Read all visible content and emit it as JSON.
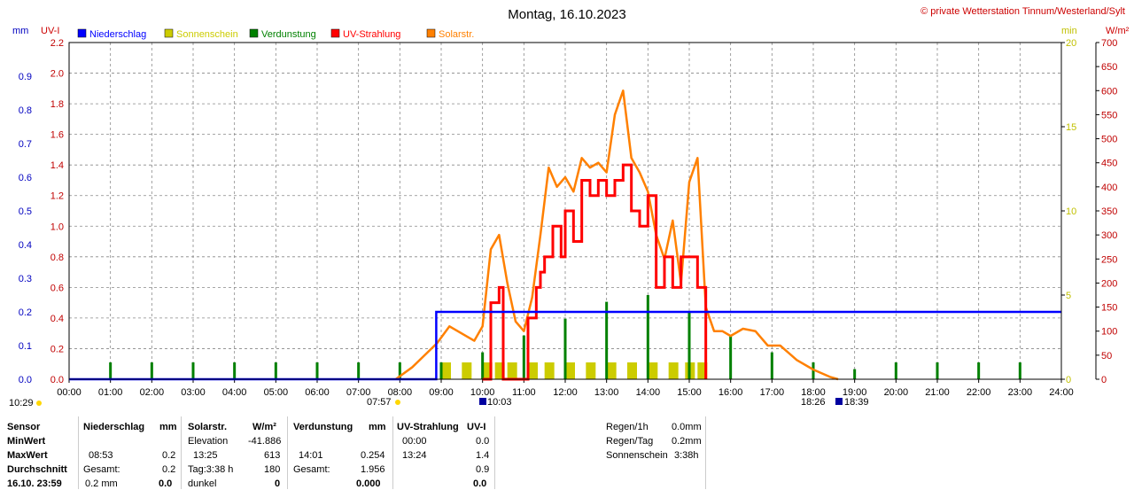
{
  "title": "Montag, 16.10.2023",
  "copyright": "© private Wetterstation Tinnum/Westerland/Sylt",
  "axis_units": {
    "mm": "mm",
    "uvi": "UV-I",
    "min": "min",
    "wm2": "W/m²"
  },
  "legend": [
    {
      "label": "Niederschlag",
      "color": "#0000ff"
    },
    {
      "label": "Sonnenschein",
      "color": "#cccc00"
    },
    {
      "label": "Verdunstung",
      "color": "#008000"
    },
    {
      "label": "UV-Strahlung",
      "color": "#ff0000"
    },
    {
      "label": "Solarstr.",
      "color": "#ff8000"
    }
  ],
  "markers": {
    "sunrise_label": "10:29",
    "sun_1": "07:57",
    "sun_2": "10:03",
    "sun_3": "18:26",
    "sun_4": "18:39"
  },
  "chart_data": {
    "type": "line",
    "title": "Montag, 16.10.2023",
    "x_range": [
      0,
      24
    ],
    "x_ticks": [
      "00:00",
      "01:00",
      "02:00",
      "03:00",
      "04:00",
      "05:00",
      "06:00",
      "07:00",
      "08:00",
      "09:00",
      "10:00",
      "11:00",
      "12:00",
      "13:00",
      "14:00",
      "15:00",
      "16:00",
      "17:00",
      "18:00",
      "19:00",
      "20:00",
      "21:00",
      "22:00",
      "23:00",
      "24:00"
    ],
    "axes": {
      "mm": {
        "range": [
          0,
          1.0
        ],
        "ticks": [
          "0.0",
          "0.1",
          "0.2",
          "0.3",
          "0.4",
          "0.5",
          "0.6",
          "0.7",
          "0.8",
          "0.9"
        ],
        "color": "#0000c0"
      },
      "uvi": {
        "range": [
          0,
          2.2
        ],
        "ticks": [
          "0.0",
          "0.2",
          "0.4",
          "0.6",
          "0.8",
          "1.0",
          "1.2",
          "1.4",
          "1.6",
          "1.8",
          "2.0",
          "2.2"
        ],
        "color": "#c00000"
      },
      "min": {
        "range": [
          0,
          20
        ],
        "ticks": [
          "0",
          "5",
          "10",
          "15",
          "20"
        ],
        "color": "#c0c000"
      },
      "wm2": {
        "range": [
          0,
          700
        ],
        "ticks": [
          "0",
          "50",
          "100",
          "150",
          "200",
          "250",
          "300",
          "350",
          "400",
          "450",
          "500",
          "550",
          "600",
          "650",
          "700"
        ],
        "color": "#c00000"
      }
    },
    "grid": true,
    "series": [
      {
        "name": "Niederschlag",
        "color": "#0000ff",
        "axis": "mm",
        "points": [
          [
            0,
            0
          ],
          [
            8.88,
            0
          ],
          [
            8.88,
            0.2
          ],
          [
            24,
            0.2
          ]
        ]
      },
      {
        "name": "Sonnenschein",
        "color": "#cccc00",
        "axis": "min",
        "points": [
          [
            9.0,
            1
          ],
          [
            9.5,
            1
          ],
          [
            10.0,
            1
          ],
          [
            10.3,
            1
          ],
          [
            10.6,
            1
          ],
          [
            11.1,
            1
          ],
          [
            11.5,
            1
          ],
          [
            12.0,
            1
          ],
          [
            12.5,
            1
          ],
          [
            13.0,
            1
          ],
          [
            13.5,
            1
          ],
          [
            14.0,
            1
          ],
          [
            14.5,
            1
          ],
          [
            14.9,
            1
          ],
          [
            15.2,
            1
          ]
        ]
      },
      {
        "name": "Verdunstung",
        "color": "#008000",
        "axis": "mm",
        "points": [
          [
            1,
            0.05
          ],
          [
            2,
            0.05
          ],
          [
            3,
            0.05
          ],
          [
            4,
            0.05
          ],
          [
            5,
            0.05
          ],
          [
            6,
            0.05
          ],
          [
            7,
            0.05
          ],
          [
            8,
            0.05
          ],
          [
            9,
            0.05
          ],
          [
            10,
            0.08
          ],
          [
            11,
            0.13
          ],
          [
            12,
            0.18
          ],
          [
            13,
            0.23
          ],
          [
            14,
            0.25
          ],
          [
            15,
            0.2
          ],
          [
            16,
            0.13
          ],
          [
            17,
            0.08
          ],
          [
            18,
            0.05
          ],
          [
            19,
            0.03
          ],
          [
            20,
            0.05
          ],
          [
            21,
            0.05
          ],
          [
            22,
            0.05
          ],
          [
            23,
            0.05
          ]
        ]
      },
      {
        "name": "UV-Strahlung",
        "color": "#ff0000",
        "axis": "uvi",
        "points": [
          [
            10.0,
            0
          ],
          [
            10.2,
            0.5
          ],
          [
            10.4,
            0.6
          ],
          [
            10.5,
            0
          ],
          [
            11.0,
            0
          ],
          [
            11.1,
            0.4
          ],
          [
            11.3,
            0.6
          ],
          [
            11.4,
            0.7
          ],
          [
            11.5,
            0.8
          ],
          [
            11.7,
            1.0
          ],
          [
            11.9,
            0.8
          ],
          [
            12.0,
            1.1
          ],
          [
            12.2,
            0.9
          ],
          [
            12.4,
            1.3
          ],
          [
            12.6,
            1.2
          ],
          [
            12.8,
            1.3
          ],
          [
            13.0,
            1.2
          ],
          [
            13.2,
            1.3
          ],
          [
            13.4,
            1.4
          ],
          [
            13.6,
            1.1
          ],
          [
            13.8,
            1.0
          ],
          [
            14.0,
            1.2
          ],
          [
            14.2,
            0.6
          ],
          [
            14.4,
            0.8
          ],
          [
            14.6,
            0.6
          ],
          [
            14.8,
            0.8
          ],
          [
            15.0,
            0.8
          ],
          [
            15.2,
            0.6
          ],
          [
            15.4,
            0
          ]
        ]
      },
      {
        "name": "Solarstr.",
        "color": "#ff8000",
        "axis": "wm2",
        "points": [
          [
            7.9,
            0
          ],
          [
            8.3,
            25
          ],
          [
            8.6,
            50
          ],
          [
            8.9,
            75
          ],
          [
            9.2,
            110
          ],
          [
            9.5,
            95
          ],
          [
            9.8,
            80
          ],
          [
            10.0,
            110
          ],
          [
            10.2,
            270
          ],
          [
            10.4,
            300
          ],
          [
            10.6,
            200
          ],
          [
            10.8,
            120
          ],
          [
            11.0,
            100
          ],
          [
            11.2,
            170
          ],
          [
            11.4,
            300
          ],
          [
            11.6,
            440
          ],
          [
            11.8,
            400
          ],
          [
            12.0,
            420
          ],
          [
            12.2,
            390
          ],
          [
            12.4,
            460
          ],
          [
            12.6,
            440
          ],
          [
            12.8,
            450
          ],
          [
            13.0,
            430
          ],
          [
            13.2,
            550
          ],
          [
            13.4,
            600
          ],
          [
            13.6,
            460
          ],
          [
            13.8,
            430
          ],
          [
            14.0,
            390
          ],
          [
            14.2,
            300
          ],
          [
            14.4,
            250
          ],
          [
            14.6,
            330
          ],
          [
            14.8,
            200
          ],
          [
            15.0,
            410
          ],
          [
            15.2,
            460
          ],
          [
            15.4,
            150
          ],
          [
            15.6,
            100
          ],
          [
            15.8,
            100
          ],
          [
            16.0,
            90
          ],
          [
            16.3,
            105
          ],
          [
            16.6,
            100
          ],
          [
            16.9,
            70
          ],
          [
            17.2,
            70
          ],
          [
            17.6,
            40
          ],
          [
            18.0,
            20
          ],
          [
            18.4,
            5
          ],
          [
            18.6,
            0
          ]
        ]
      }
    ]
  },
  "stats": {
    "headers": {
      "sensor": "Sensor",
      "niederschlag": "Niederschlag",
      "ns_unit": "mm",
      "solar": "Solarstr.",
      "solar_unit": "W/m²",
      "verdunstung": "Verdunstung",
      "vd_unit": "mm",
      "uv": "UV-Strahlung",
      "uv_unit": "UV-I"
    },
    "rows": [
      {
        "label": "MinWert",
        "solar_lbl": "Elevation",
        "solar_val": "-41.886",
        "uv_time": "00:00",
        "uv_val": "0.0"
      },
      {
        "label": "MaxWert",
        "ns_time": "08:53",
        "ns_val": "0.2",
        "solar_time": "13:25",
        "solar_val": "613",
        "vd_time": "14:01",
        "vd_val": "0.254",
        "uv_time": "13:24",
        "uv_val": "1.4"
      },
      {
        "label": "Durchschnitt",
        "ns_lbl": "Gesamt:",
        "ns_val": "0.2",
        "solar_lbl": "Tag:3:38 h",
        "solar_val": "180",
        "vd_lbl": "Gesamt:",
        "vd_val": "1.956",
        "uv_val": "0.9"
      },
      {
        "label": "16.10. 23:59",
        "ns_lbl": "0.2 mm",
        "ns_val": "0.0",
        "solar_lbl": "dunkel",
        "solar_val": "0",
        "vd_val": "0.000",
        "uv_val": "0.0"
      }
    ],
    "summary": [
      {
        "label": "Regen/1h",
        "value": "0.0mm"
      },
      {
        "label": "Regen/Tag",
        "value": "0.2mm"
      },
      {
        "label": "Sonnenschein",
        "value": "3:38h"
      }
    ]
  }
}
